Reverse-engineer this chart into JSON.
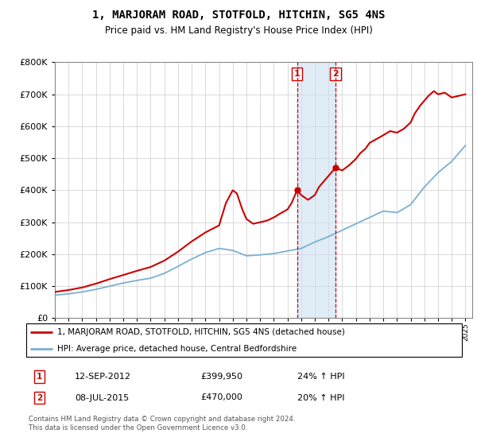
{
  "title": "1, MARJORAM ROAD, STOTFOLD, HITCHIN, SG5 4NS",
  "subtitle": "Price paid vs. HM Land Registry's House Price Index (HPI)",
  "property_label": "1, MARJORAM ROAD, STOTFOLD, HITCHIN, SG5 4NS (detached house)",
  "hpi_label": "HPI: Average price, detached house, Central Bedfordshire",
  "footer": "Contains HM Land Registry data © Crown copyright and database right 2024.\nThis data is licensed under the Open Government Licence v3.0.",
  "event1_label": "1",
  "event1_date": "12-SEP-2012",
  "event1_price": "£399,950",
  "event1_hpi": "24% ↑ HPI",
  "event1_year": 2012.7,
  "event2_label": "2",
  "event2_date": "08-JUL-2015",
  "event2_price": "£470,000",
  "event2_hpi": "20% ↑ HPI",
  "event2_year": 2015.5,
  "property_color": "#cc0000",
  "hpi_color": "#7ab0d4",
  "event_box_color": "#cc0000",
  "shading_color": "#cce0f0",
  "ylim": [
    0,
    800000
  ],
  "yticks": [
    0,
    100000,
    200000,
    300000,
    400000,
    500000,
    600000,
    700000,
    800000
  ],
  "xmin": 1995,
  "xmax": 2025.5,
  "xticks": [
    1995,
    1996,
    1997,
    1998,
    1999,
    2000,
    2001,
    2002,
    2003,
    2004,
    2005,
    2006,
    2007,
    2008,
    2009,
    2010,
    2011,
    2012,
    2013,
    2014,
    2015,
    2016,
    2017,
    2018,
    2019,
    2020,
    2021,
    2022,
    2023,
    2024,
    2025
  ],
  "hpi_years": [
    1995,
    1996,
    1997,
    1998,
    1999,
    2000,
    2001,
    2002,
    2003,
    2004,
    2005,
    2006,
    2007,
    2008,
    2009,
    2010,
    2011,
    2012,
    2013,
    2014,
    2015,
    2016,
    2017,
    2018,
    2019,
    2020,
    2021,
    2022,
    2023,
    2024,
    2025
  ],
  "hpi_values": [
    72000,
    76000,
    82000,
    90000,
    100000,
    110000,
    118000,
    125000,
    140000,
    162000,
    185000,
    205000,
    218000,
    212000,
    195000,
    198000,
    202000,
    210000,
    218000,
    238000,
    255000,
    275000,
    295000,
    315000,
    335000,
    330000,
    355000,
    410000,
    455000,
    490000,
    540000
  ],
  "prop_years": [
    1995,
    1996,
    1997,
    1998,
    1999,
    2000,
    2001,
    2002,
    2003,
    2004,
    2005,
    2006,
    2007,
    2007.5,
    2008,
    2008.3,
    2008.7,
    2009,
    2009.5,
    2010,
    2010.5,
    2011,
    2011.5,
    2012,
    2012.3,
    2012.7,
    2013,
    2013.5,
    2014,
    2014.3,
    2014.7,
    2015,
    2015.5,
    2016,
    2016.5,
    2017,
    2017.3,
    2017.7,
    2018,
    2018.5,
    2019,
    2019.5,
    2020,
    2020.5,
    2021,
    2021.3,
    2021.7,
    2022,
    2022.3,
    2022.7,
    2023,
    2023.5,
    2024,
    2024.5,
    2025
  ],
  "prop_values": [
    82000,
    88000,
    96000,
    108000,
    122000,
    135000,
    148000,
    160000,
    180000,
    208000,
    240000,
    268000,
    290000,
    360000,
    400000,
    390000,
    340000,
    310000,
    295000,
    300000,
    305000,
    315000,
    328000,
    340000,
    360000,
    399950,
    385000,
    370000,
    385000,
    410000,
    430000,
    445000,
    470000,
    462000,
    478000,
    498000,
    515000,
    530000,
    548000,
    560000,
    572000,
    585000,
    580000,
    592000,
    612000,
    640000,
    665000,
    680000,
    695000,
    710000,
    700000,
    705000,
    690000,
    695000,
    700000
  ]
}
